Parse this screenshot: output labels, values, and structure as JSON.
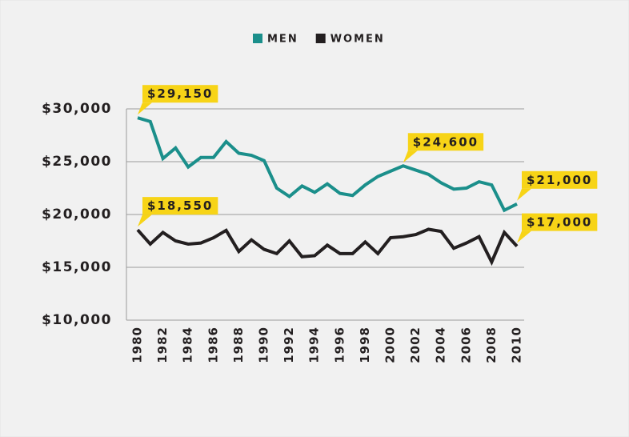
{
  "chart_data": {
    "type": "line",
    "x": [
      1980,
      1981,
      1982,
      1983,
      1984,
      1985,
      1986,
      1987,
      1988,
      1989,
      1990,
      1991,
      1992,
      1993,
      1994,
      1995,
      1996,
      1997,
      1998,
      1999,
      2000,
      2001,
      2002,
      2003,
      2004,
      2005,
      2006,
      2007,
      2008,
      2009,
      2010
    ],
    "xlim": [
      1980,
      2010
    ],
    "xticks": [
      1980,
      1982,
      1984,
      1986,
      1988,
      1990,
      1992,
      1994,
      1996,
      1998,
      2000,
      2002,
      2004,
      2006,
      2008,
      2010
    ],
    "ylim": [
      10000,
      30000
    ],
    "yticks": [
      {
        "value": 10000,
        "label": "$10,000"
      },
      {
        "value": 15000,
        "label": "$15,000"
      },
      {
        "value": 20000,
        "label": "$20,000"
      },
      {
        "value": 25000,
        "label": "$25,000"
      },
      {
        "value": 30000,
        "label": "$30,000"
      }
    ],
    "grid": true,
    "legend": "top",
    "series": [
      {
        "name": "MEN",
        "color": "#1b8f8b",
        "values": [
          29150,
          28800,
          25300,
          26300,
          24500,
          25400,
          25400,
          26900,
          25800,
          25600,
          25100,
          22500,
          21700,
          22700,
          22100,
          22900,
          22000,
          21800,
          22800,
          23600,
          24100,
          24600,
          24200,
          23800,
          23000,
          22400,
          22500,
          23100,
          22800,
          20400,
          21000
        ],
        "value_labels": [
          "$29,150",
          null,
          null,
          null,
          null,
          null,
          null,
          null,
          null,
          null,
          null,
          null,
          null,
          null,
          null,
          null,
          null,
          null,
          null,
          null,
          null,
          "$24,600",
          null,
          null,
          null,
          null,
          null,
          null,
          null,
          null,
          "$21,000"
        ]
      },
      {
        "name": "WOMEN",
        "color": "#231f20",
        "values": [
          18550,
          17200,
          18300,
          17500,
          17200,
          17300,
          17800,
          18500,
          16500,
          17600,
          16700,
          16300,
          17500,
          16000,
          16100,
          17100,
          16300,
          16300,
          17400,
          16300,
          17800,
          17900,
          18100,
          18600,
          18400,
          16800,
          17300,
          17900,
          15500,
          18300,
          17000
        ],
        "value_labels": [
          "$18,550",
          null,
          null,
          null,
          null,
          null,
          null,
          null,
          null,
          null,
          null,
          null,
          null,
          null,
          null,
          null,
          null,
          null,
          null,
          null,
          null,
          null,
          null,
          null,
          null,
          null,
          null,
          null,
          null,
          null,
          "$17,000"
        ]
      }
    ]
  }
}
